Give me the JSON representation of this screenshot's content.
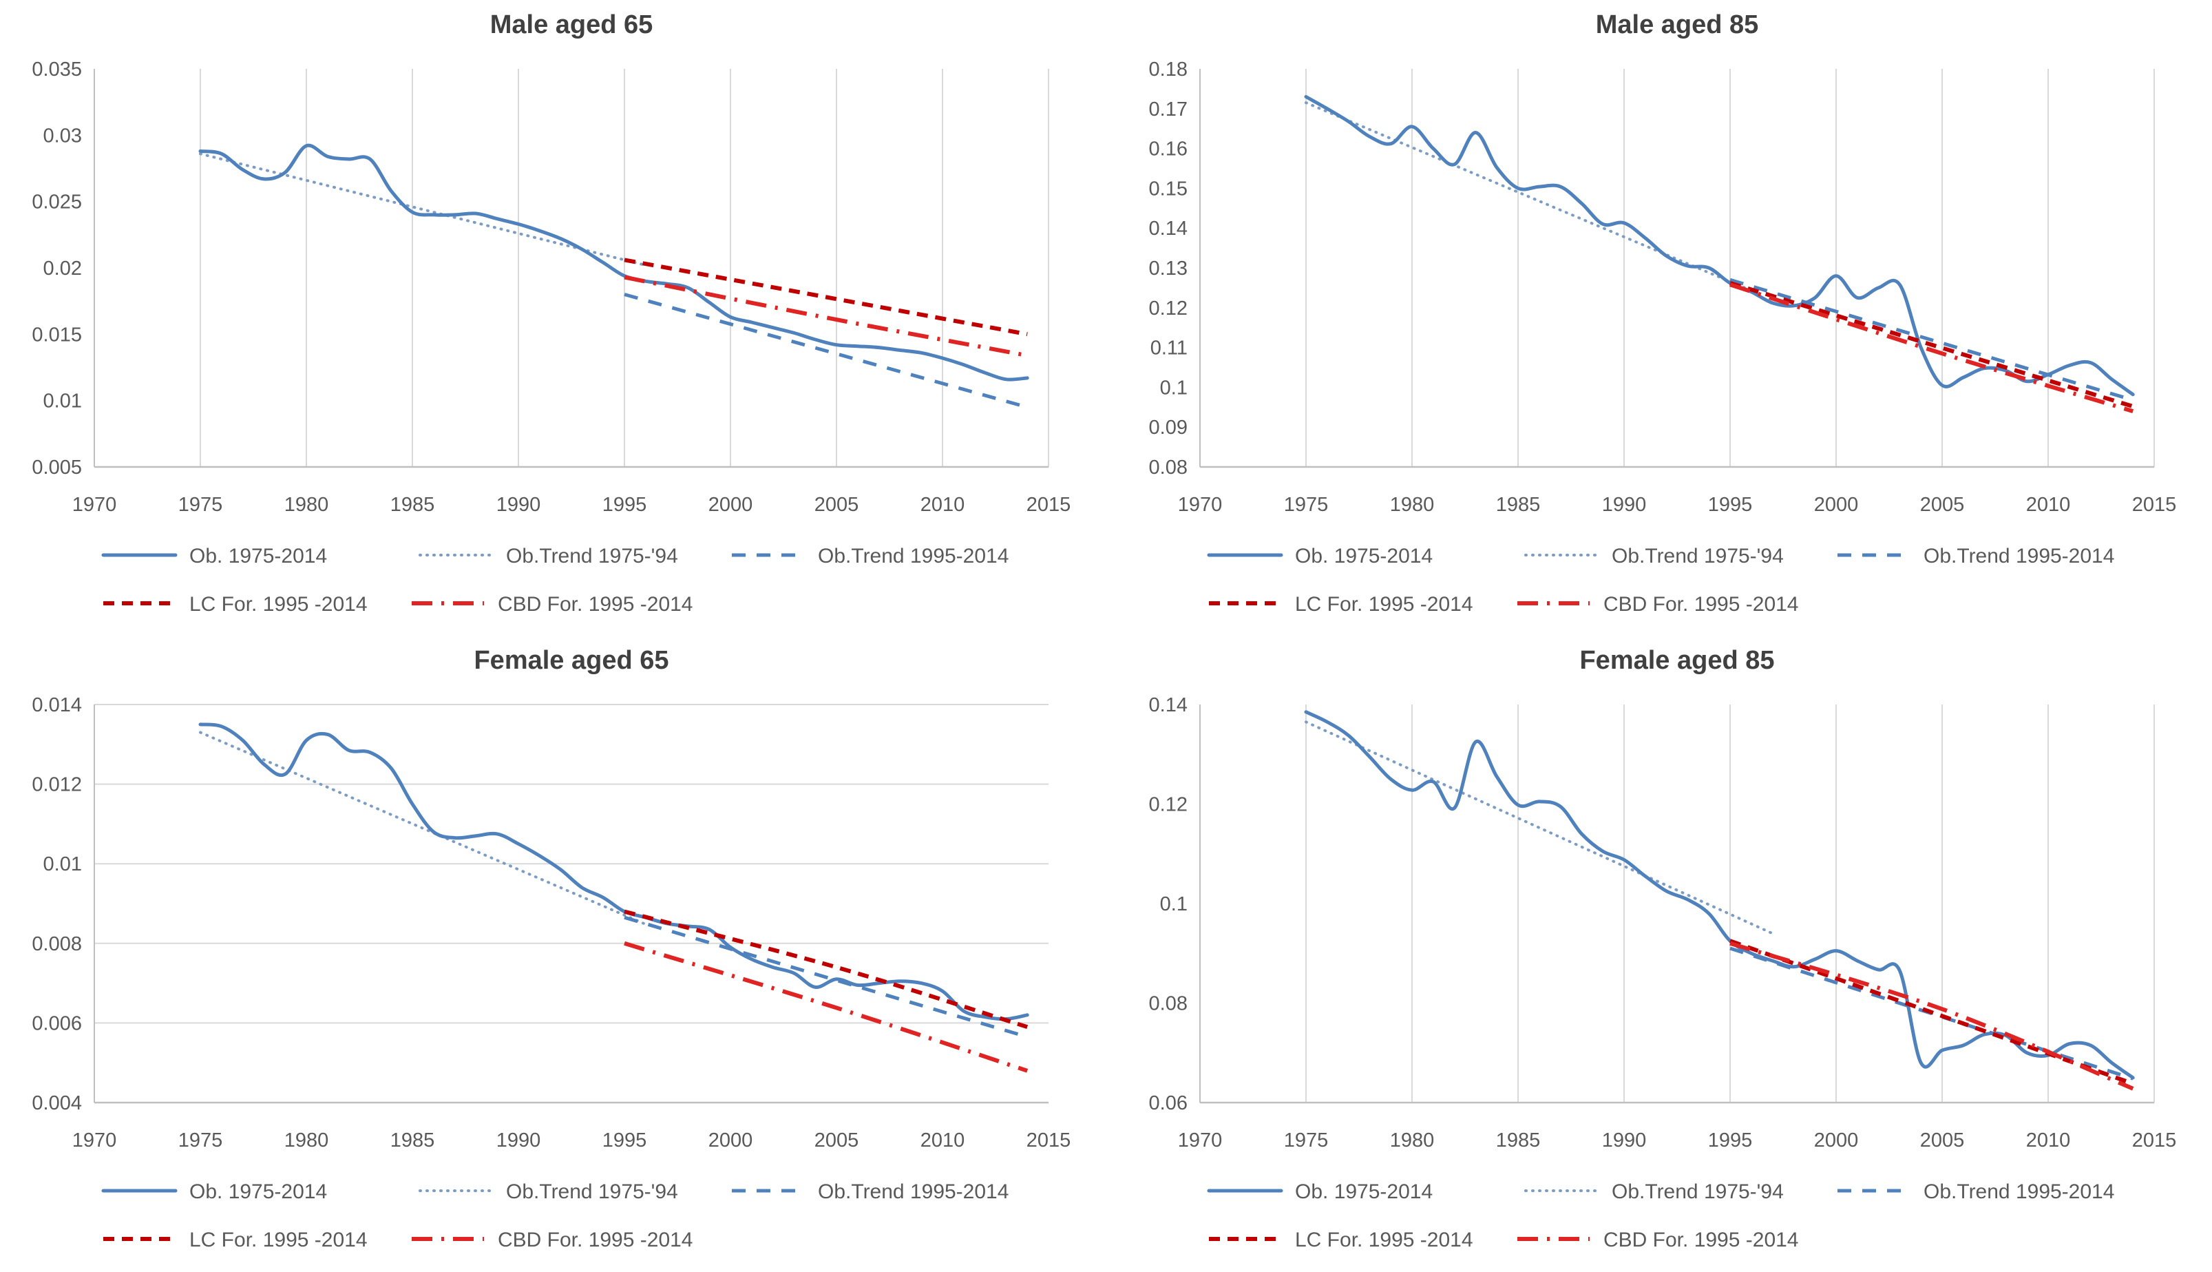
{
  "colors": {
    "background": "#FFFFFF",
    "grid": "#D9D9D9",
    "axis": "#BFBFBF",
    "tick_text": "#595959",
    "title_text": "#404040",
    "legend_text": "#595959",
    "observed_blue": "#4F81BD",
    "trend_dotted_blue": "#7D9CC4",
    "lc_red": "#C00000",
    "cbd_red": "#E02424"
  },
  "chart_data": [
    {
      "type": "line",
      "title": "Male aged 65",
      "x": {
        "min": 1970,
        "max": 2015,
        "ticks": [
          "1970",
          "1975",
          "1980",
          "1985",
          "1990",
          "1995",
          "2000",
          "2005",
          "2010",
          "2015"
        ]
      },
      "y": {
        "min": 0.005,
        "max": 0.035,
        "ticks": [
          "0.035",
          "0.03",
          "0.025",
          "0.02",
          "0.015",
          "0.01",
          "0.005"
        ]
      },
      "gridlines": "vertical",
      "legend_rows": [
        [
          0,
          1,
          2
        ],
        [
          3,
          4
        ]
      ],
      "series": [
        {
          "name": "Ob. 1975-2014",
          "style": "solid",
          "color": "#4F81BD",
          "start_year": 1975,
          "values": [
            0.0288,
            0.0286,
            0.0274,
            0.0267,
            0.0272,
            0.0292,
            0.0284,
            0.0282,
            0.0282,
            0.0258,
            0.0242,
            0.024,
            0.024,
            0.0241,
            0.0237,
            0.0233,
            0.0228,
            0.0222,
            0.0214,
            0.0204,
            0.0194,
            0.019,
            0.0188,
            0.0185,
            0.0174,
            0.0163,
            0.0159,
            0.0155,
            0.0151,
            0.0146,
            0.0142,
            0.0141,
            0.014,
            0.0138,
            0.0136,
            0.0132,
            0.0127,
            0.0121,
            0.0116,
            0.0117
          ]
        },
        {
          "name": "Ob.Trend 1975-'94",
          "style": "dotted",
          "color": "#7D9CC4",
          "points": [
            [
              1975,
              0.0286
            ],
            [
              1996,
              0.0202
            ]
          ]
        },
        {
          "name": "Ob.Trend 1995-2014",
          "style": "dashed",
          "color": "#4F81BD",
          "points": [
            [
              1995,
              0.018
            ],
            [
              2014,
              0.0095
            ]
          ]
        },
        {
          "name": "LC For. 1995 -2014",
          "style": "dense-dash",
          "color": "#C00000",
          "points": [
            [
              1995,
              0.0206
            ],
            [
              2014,
              0.015
            ]
          ]
        },
        {
          "name": "CBD For. 1995 -2014",
          "style": "dash-dot",
          "color": "#E02424",
          "points": [
            [
              1995,
              0.0193
            ],
            [
              2005,
              0.0161
            ],
            [
              2014,
              0.0134
            ]
          ]
        }
      ]
    },
    {
      "type": "line",
      "title": "Male aged 85",
      "x": {
        "min": 1970,
        "max": 2015,
        "ticks": [
          "1970",
          "1975",
          "1980",
          "1985",
          "1990",
          "1995",
          "2000",
          "2005",
          "2010",
          "2015"
        ]
      },
      "y": {
        "min": 0.08,
        "max": 0.18,
        "ticks": [
          "0.18",
          "0.17",
          "0.16",
          "0.15",
          "0.14",
          "0.13",
          "0.12",
          "0.11",
          "0.1",
          "0.09",
          "0.08"
        ]
      },
      "gridlines": "vertical",
      "legend_rows": [
        [
          0,
          1,
          2
        ],
        [
          3,
          4
        ]
      ],
      "series": [
        {
          "name": "Ob. 1975-2014",
          "style": "solid",
          "color": "#4F81BD",
          "start_year": 1975,
          "values": [
            0.173,
            0.17,
            0.1668,
            0.163,
            0.1612,
            0.1655,
            0.16,
            0.156,
            0.164,
            0.1552,
            0.15,
            0.1504,
            0.1504,
            0.1462,
            0.141,
            0.1413,
            0.1375,
            0.133,
            0.1305,
            0.13,
            0.1262,
            0.124,
            0.1212,
            0.1205,
            0.1225,
            0.128,
            0.1225,
            0.125,
            0.1258,
            0.11,
            0.1005,
            0.1025,
            0.1048,
            0.1042,
            0.1015,
            0.1032,
            0.1055,
            0.1062,
            0.102,
            0.0982
          ]
        },
        {
          "name": "Ob.Trend 1975-'94",
          "style": "dotted",
          "color": "#7D9CC4",
          "points": [
            [
              1975,
              0.1715
            ],
            [
              1996,
              0.1243
            ]
          ]
        },
        {
          "name": "Ob.Trend 1995-2014",
          "style": "dashed",
          "color": "#4F81BD",
          "points": [
            [
              1995,
              0.127
            ],
            [
              2014,
              0.0968
            ]
          ]
        },
        {
          "name": "LC For. 1995 -2014",
          "style": "dense-dash",
          "color": "#C00000",
          "points": [
            [
              1995,
              0.1262
            ],
            [
              2014,
              0.0952
            ]
          ]
        },
        {
          "name": "CBD For. 1995 -2014",
          "style": "dash-dot",
          "color": "#E02424",
          "points": [
            [
              1995,
              0.1258
            ],
            [
              2005,
              0.1085
            ],
            [
              2014,
              0.094
            ]
          ]
        }
      ]
    },
    {
      "type": "line",
      "title": "Female aged 65",
      "x": {
        "min": 1970,
        "max": 2015,
        "ticks": [
          "1970",
          "1975",
          "1980",
          "1985",
          "1990",
          "1995",
          "2000",
          "2005",
          "2010",
          "2015"
        ]
      },
      "y": {
        "min": 0.004,
        "max": 0.014,
        "ticks": [
          "0.014",
          "0.012",
          "0.01",
          "0.008",
          "0.006",
          "0.004"
        ]
      },
      "gridlines": "horizontal",
      "legend_rows": [
        [
          0,
          1,
          2
        ],
        [
          3,
          4
        ]
      ],
      "series": [
        {
          "name": "Ob. 1975-2014",
          "style": "solid",
          "color": "#4F81BD",
          "start_year": 1975,
          "values": [
            0.0135,
            0.01345,
            0.0131,
            0.0125,
            0.01225,
            0.0131,
            0.01325,
            0.01285,
            0.0128,
            0.0124,
            0.0115,
            0.0108,
            0.01065,
            0.0107,
            0.01075,
            0.0105,
            0.0102,
            0.00985,
            0.0094,
            0.00915,
            0.0088,
            0.00865,
            0.0085,
            0.00843,
            0.00835,
            0.0079,
            0.0076,
            0.0074,
            0.00725,
            0.0069,
            0.0071,
            0.00695,
            0.007,
            0.00705,
            0.007,
            0.0068,
            0.0063,
            0.00615,
            0.0061,
            0.0062
          ]
        },
        {
          "name": "Ob.Trend 1975-'94",
          "style": "dotted",
          "color": "#7D9CC4",
          "points": [
            [
              1975,
              0.0133
            ],
            [
              1996,
              0.00848
            ]
          ]
        },
        {
          "name": "Ob.Trend 1995-2014",
          "style": "dashed",
          "color": "#4F81BD",
          "points": [
            [
              1995,
              0.00865
            ],
            [
              2014,
              0.00565
            ]
          ]
        },
        {
          "name": "LC For. 1995 -2014",
          "style": "dense-dash",
          "color": "#C00000",
          "points": [
            [
              1995,
              0.0088
            ],
            [
              2005,
              0.0074
            ],
            [
              2014,
              0.0059
            ]
          ]
        },
        {
          "name": "CBD For. 1995 -2014",
          "style": "dash-dot",
          "color": "#E02424",
          "points": [
            [
              1995,
              0.008
            ],
            [
              2005,
              0.00638
            ],
            [
              2014,
              0.0048
            ]
          ]
        }
      ]
    },
    {
      "type": "line",
      "title": "Female aged 85",
      "x": {
        "min": 1970,
        "max": 2015,
        "ticks": [
          "1970",
          "1975",
          "1980",
          "1985",
          "1990",
          "1995",
          "2000",
          "2005",
          "2010",
          "2015"
        ]
      },
      "y": {
        "min": 0.06,
        "max": 0.14,
        "ticks": [
          "0.14",
          "0.12",
          "0.1",
          "0.08",
          "0.06"
        ]
      },
      "gridlines": "vertical",
      "legend_rows": [
        [
          0,
          1,
          2
        ],
        [
          3,
          4
        ]
      ],
      "series": [
        {
          "name": "Ob. 1975-2014",
          "style": "solid",
          "color": "#4F81BD",
          "start_year": 1975,
          "values": [
            0.1385,
            0.1365,
            0.1338,
            0.1295,
            0.125,
            0.1228,
            0.1245,
            0.1192,
            0.1325,
            0.1255,
            0.1198,
            0.1205,
            0.1195,
            0.114,
            0.1105,
            0.1088,
            0.1055,
            0.1025,
            0.1008,
            0.098,
            0.0925,
            0.09,
            0.0885,
            0.0873,
            0.0888,
            0.0905,
            0.0885,
            0.0867,
            0.0865,
            0.068,
            0.0705,
            0.0715,
            0.0737,
            0.0735,
            0.07,
            0.0695,
            0.0718,
            0.0715,
            0.068,
            0.065
          ]
        },
        {
          "name": "Ob.Trend 1975-'94",
          "style": "dotted",
          "color": "#7D9CC4",
          "points": [
            [
              1975,
              0.1365
            ],
            [
              1997,
              0.094
            ]
          ]
        },
        {
          "name": "Ob.Trend 1995-2014",
          "style": "dashed",
          "color": "#4F81BD",
          "points": [
            [
              1995,
              0.091
            ],
            [
              2014,
              0.0648
            ]
          ]
        },
        {
          "name": "LC For. 1995 -2014",
          "style": "dense-dash",
          "color": "#C00000",
          "points": [
            [
              1995,
              0.0925
            ],
            [
              2014,
              0.0638
            ]
          ]
        },
        {
          "name": "CBD For. 1995 -2014",
          "style": "dash-dot",
          "color": "#E02424",
          "points": [
            [
              1995,
              0.092
            ],
            [
              2005,
              0.0788
            ],
            [
              2014,
              0.0628
            ]
          ]
        }
      ]
    }
  ]
}
